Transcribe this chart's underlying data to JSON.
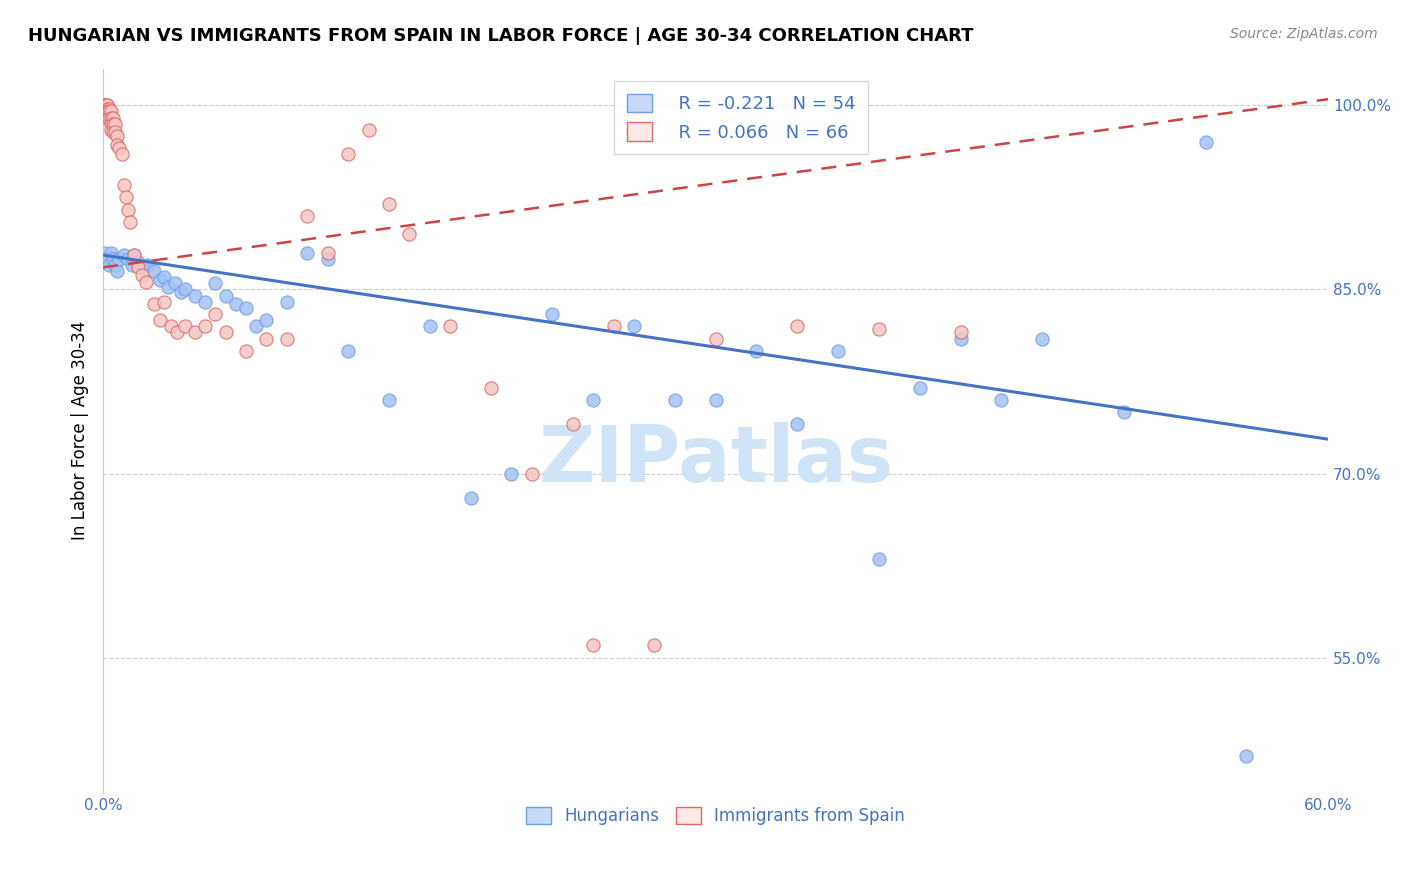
{
  "title": "HUNGARIAN VS IMMIGRANTS FROM SPAIN IN LABOR FORCE | AGE 30-34 CORRELATION CHART",
  "source": "Source: ZipAtlas.com",
  "ylabel": "In Labor Force | Age 30-34",
  "xlim": [
    0.0,
    0.6
  ],
  "ylim": [
    0.44,
    1.03
  ],
  "xticks": [
    0.0,
    0.1,
    0.2,
    0.3,
    0.4,
    0.5,
    0.6
  ],
  "xticklabels": [
    "0.0%",
    "",
    "",
    "",
    "",
    "",
    "60.0%"
  ],
  "yticks": [
    0.55,
    0.7,
    0.85,
    1.0
  ],
  "yticklabels": [
    "55.0%",
    "70.0%",
    "85.0%",
    "100.0%"
  ],
  "blue_color": "#a4c2f4",
  "pink_color": "#f4c7c3",
  "blue_edge": "#6d9eeb",
  "pink_edge": "#e06666",
  "trend_blue": "#4472c4",
  "trend_pink": "#cc4444",
  "watermark_color": "#d0e4f7",
  "legend_r_blue": "R = -0.221",
  "legend_n_blue": "N = 54",
  "legend_r_pink": "R = 0.066",
  "legend_n_pink": "N = 66",
  "blue_trend_x0": 0.0,
  "blue_trend_y0": 0.878,
  "blue_trend_x1": 0.6,
  "blue_trend_y1": 0.728,
  "pink_trend_x0": 0.0,
  "pink_trend_y0": 0.868,
  "pink_trend_x1": 0.6,
  "pink_trend_y1": 1.005,
  "blue_scatter_x": [
    0.001,
    0.002,
    0.003,
    0.004,
    0.005,
    0.006,
    0.007,
    0.008,
    0.01,
    0.012,
    0.014,
    0.015,
    0.017,
    0.02,
    0.022,
    0.025,
    0.028,
    0.03,
    0.032,
    0.035,
    0.038,
    0.04,
    0.045,
    0.05,
    0.055,
    0.06,
    0.065,
    0.07,
    0.075,
    0.08,
    0.09,
    0.1,
    0.11,
    0.12,
    0.14,
    0.16,
    0.18,
    0.2,
    0.22,
    0.24,
    0.26,
    0.28,
    0.3,
    0.32,
    0.34,
    0.36,
    0.38,
    0.4,
    0.42,
    0.44,
    0.46,
    0.5,
    0.54,
    0.56
  ],
  "blue_scatter_y": [
    0.88,
    0.875,
    0.87,
    0.88,
    0.875,
    0.87,
    0.865,
    0.875,
    0.878,
    0.875,
    0.87,
    0.878,
    0.872,
    0.868,
    0.87,
    0.865,
    0.858,
    0.86,
    0.852,
    0.855,
    0.848,
    0.85,
    0.845,
    0.84,
    0.855,
    0.845,
    0.838,
    0.835,
    0.82,
    0.825,
    0.84,
    0.88,
    0.875,
    0.8,
    0.76,
    0.82,
    0.68,
    0.7,
    0.83,
    0.76,
    0.82,
    0.76,
    0.76,
    0.8,
    0.74,
    0.8,
    0.63,
    0.77,
    0.81,
    0.76,
    0.81,
    0.75,
    0.97,
    0.47
  ],
  "pink_scatter_x": [
    0.001,
    0.001,
    0.001,
    0.001,
    0.001,
    0.001,
    0.002,
    0.002,
    0.002,
    0.002,
    0.002,
    0.002,
    0.003,
    0.003,
    0.003,
    0.004,
    0.004,
    0.004,
    0.004,
    0.005,
    0.005,
    0.005,
    0.006,
    0.006,
    0.007,
    0.007,
    0.008,
    0.009,
    0.01,
    0.011,
    0.012,
    0.013,
    0.015,
    0.017,
    0.019,
    0.021,
    0.025,
    0.028,
    0.03,
    0.033,
    0.036,
    0.04,
    0.045,
    0.05,
    0.055,
    0.06,
    0.07,
    0.08,
    0.09,
    0.1,
    0.11,
    0.12,
    0.13,
    0.14,
    0.15,
    0.17,
    0.19,
    0.21,
    0.23,
    0.25,
    0.27,
    0.3,
    0.34,
    0.38,
    0.42,
    0.24
  ],
  "pink_scatter_y": [
    1.0,
    1.0,
    1.0,
    0.997,
    0.997,
    0.995,
    1.0,
    1.0,
    0.997,
    0.995,
    0.993,
    0.99,
    0.997,
    0.995,
    0.99,
    0.995,
    0.99,
    0.985,
    0.98,
    0.99,
    0.985,
    0.978,
    0.985,
    0.978,
    0.975,
    0.968,
    0.965,
    0.96,
    0.935,
    0.925,
    0.915,
    0.905,
    0.878,
    0.868,
    0.862,
    0.856,
    0.838,
    0.825,
    0.84,
    0.82,
    0.815,
    0.82,
    0.815,
    0.82,
    0.83,
    0.815,
    0.8,
    0.81,
    0.81,
    0.91,
    0.88,
    0.96,
    0.98,
    0.92,
    0.895,
    0.82,
    0.77,
    0.7,
    0.74,
    0.82,
    0.56,
    0.81,
    0.82,
    0.818,
    0.815,
    0.56
  ]
}
